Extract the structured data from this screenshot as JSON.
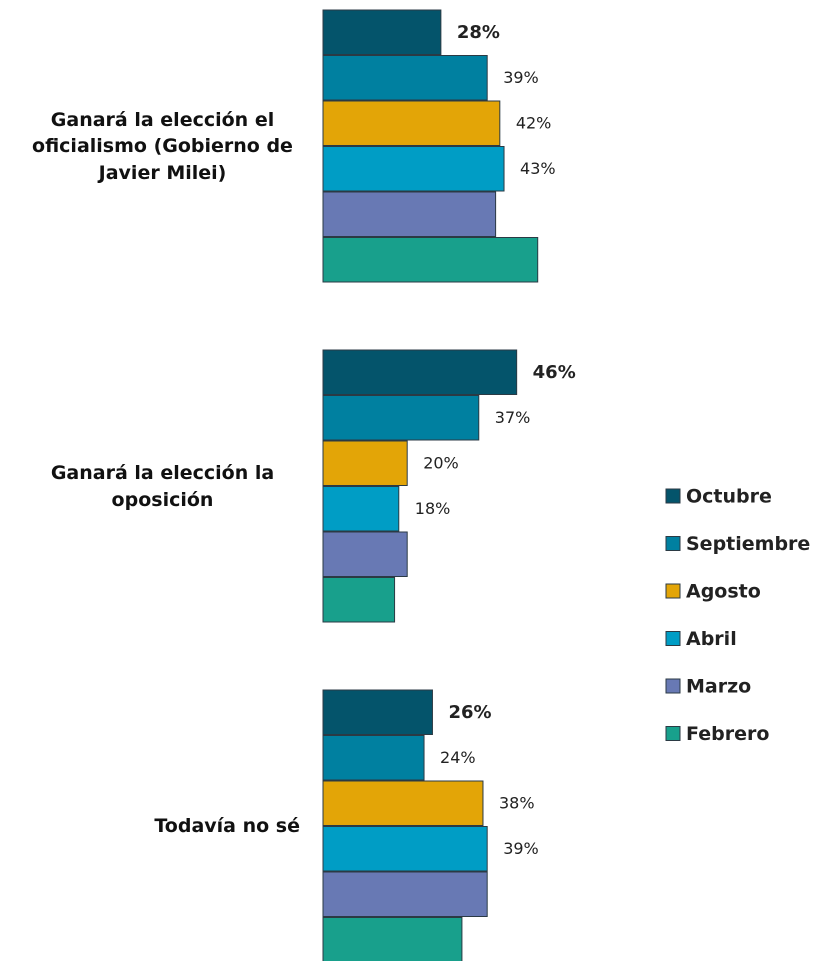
{
  "chart_data": {
    "type": "bar",
    "orientation": "horizontal",
    "categories": [
      "Ganará la elección el oficialismo (Gobierno de Javier Milei)",
      "Ganará la elección la oposición",
      "Todavía no sé"
    ],
    "series": [
      {
        "name": "Octubre",
        "color": "#04546b",
        "values": [
          28,
          46,
          26
        ],
        "value_labels": [
          "28%",
          "46%",
          "26%"
        ]
      },
      {
        "name": "Septiembre",
        "color": "#0080a0",
        "values": [
          39,
          37,
          24
        ],
        "value_labels": [
          "39%",
          "37%",
          "24%"
        ]
      },
      {
        "name": "Agosto",
        "color": "#e3a507",
        "values": [
          42,
          20,
          38
        ],
        "value_labels": [
          "42%",
          "20%",
          "38%"
        ]
      },
      {
        "name": "Abril",
        "color": "#009dc5",
        "values": [
          43,
          18,
          39
        ],
        "value_labels": [
          "43%",
          "18%",
          "39%"
        ]
      },
      {
        "name": "Marzo",
        "color": "#6879b4",
        "values": [
          41,
          20,
          39
        ],
        "value_labels": [
          null,
          null,
          null
        ]
      },
      {
        "name": "Febrero",
        "color": "#18a08c",
        "values": [
          51,
          17,
          33
        ],
        "value_labels": [
          null,
          null,
          null
        ]
      }
    ],
    "legend": "right"
  }
}
